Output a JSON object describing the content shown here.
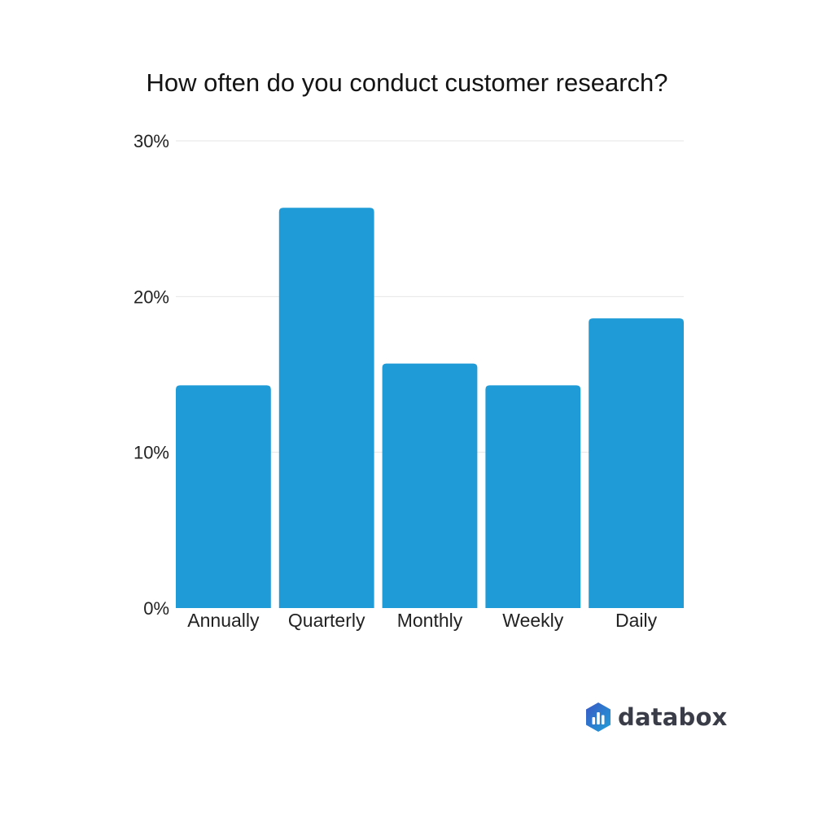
{
  "chart_data": {
    "type": "bar",
    "title": "How often do you conduct customer research?",
    "categories": [
      "Annually",
      "Quarterly",
      "Monthly",
      "Weekly",
      "Daily"
    ],
    "values": [
      14.3,
      25.7,
      15.7,
      14.3,
      18.6
    ],
    "value_unit": "%",
    "xlabel": "",
    "ylabel": "",
    "ylim": [
      0,
      30
    ],
    "yticks": [
      0,
      10,
      20,
      30
    ],
    "ytick_labels": [
      "0%",
      "10%",
      "20%",
      "30%"
    ],
    "grid": true,
    "legend": "none",
    "bar_color": "#1f9bd7",
    "grid_color": "#e6e6e6"
  },
  "branding": {
    "name": "databox",
    "logo_icon": "databox-hexagon-bars-icon",
    "logo_colors": [
      "#3a57c4",
      "#1fa0d8"
    ]
  }
}
